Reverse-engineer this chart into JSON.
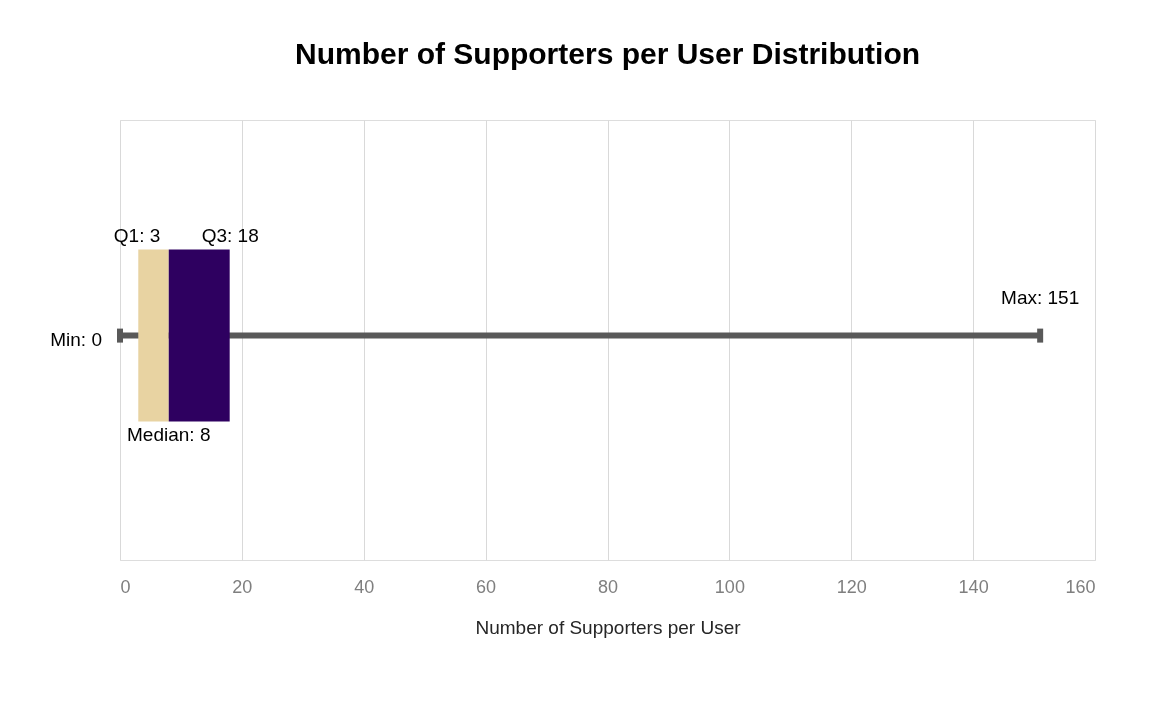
{
  "chart_data": {
    "type": "box",
    "title": "Number of Supporters per User Distribution",
    "xlabel": "Number  of Supporters per User",
    "orientation": "horizontal",
    "categories": [
      null
    ],
    "series": [
      {
        "color": "#2e0060",
        "colors": [
          "#e8d3a2"
        ],
        "boxes": [
          {
            "low": 0,
            "q1": 3,
            "median": 8,
            "q3": 18,
            "high": 151
          }
        ]
      }
    ],
    "xlim": [
      0,
      160
    ],
    "xticks": [
      0,
      20,
      40,
      60,
      80,
      100,
      120,
      140,
      160
    ],
    "grid": "x",
    "annotations": [
      "Min: 0",
      "Q1: 3",
      "Q3: 18",
      "Median: 8",
      "Max: 151"
    ]
  }
}
